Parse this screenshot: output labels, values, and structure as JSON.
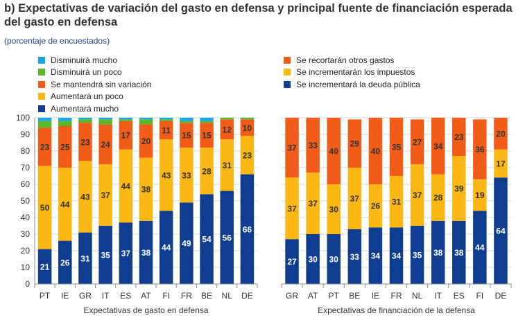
{
  "header": {
    "title": "b) Expectativas de variación del gasto en defensa y principal fuente de financiación esperada del gasto en defensa",
    "subtitle": "(porcentaje de encuestados)"
  },
  "legend_left": [
    {
      "label": "Disminuirá mucho",
      "color": "#1aa7e0"
    },
    {
      "label": "Disminuirá un poco",
      "color": "#5cb82a"
    },
    {
      "label": "Se mantendrá sin variación",
      "color": "#f25c19"
    },
    {
      "label": "Aumentará un poco",
      "color": "#fbb814"
    },
    {
      "label": "Aumentará mucho",
      "color": "#0f3d8f"
    }
  ],
  "legend_right": [
    {
      "label": "Se recortarán otros gastos",
      "color": "#f25c19"
    },
    {
      "label": "Se incrementarán los impuestos",
      "color": "#fbb814"
    },
    {
      "label": "Se incrementará la deuda pública",
      "color": "#0f3d8f"
    }
  ],
  "chart_data": [
    {
      "type": "bar",
      "stacked": true,
      "xlabel": "Expectativas de gasto en defensa",
      "ylabel": "",
      "ylim": [
        0,
        100
      ],
      "yticks": [
        0,
        10,
        20,
        30,
        40,
        50,
        60,
        70,
        80,
        90,
        100
      ],
      "grid": true,
      "categories": [
        "PT",
        "IE",
        "GR",
        "IT",
        "ES",
        "AT",
        "FI",
        "FR",
        "BE",
        "NL",
        "DE"
      ],
      "series": [
        {
          "name": "Aumentará mucho",
          "color": "#0f3d8f",
          "label_color": "#ffffff",
          "values": [
            21,
            26,
            31,
            35,
            37,
            38,
            44,
            49,
            54,
            56,
            66
          ]
        },
        {
          "name": "Aumentará un poco",
          "color": "#fbb814",
          "label_color": "#333333",
          "values": [
            50,
            44,
            43,
            37,
            44,
            38,
            43,
            33,
            28,
            31,
            23
          ]
        },
        {
          "name": "Se mantendrá sin variación",
          "color": "#f25c19",
          "label_color": "#333333",
          "values": [
            23,
            25,
            23,
            24,
            17,
            20,
            11,
            15,
            15,
            12,
            10
          ]
        },
        {
          "name": "Disminuirá un poco",
          "color": "#5cb82a",
          "label_color": "#333333",
          "values": [
            4,
            3,
            2,
            3,
            1,
            3,
            1,
            1,
            1,
            1,
            1
          ]
        },
        {
          "name": "Disminuirá mucho",
          "color": "#1aa7e0",
          "label_color": "#333333",
          "values": [
            2,
            2,
            1,
            1,
            1,
            1,
            1,
            2,
            2,
            0,
            0
          ]
        }
      ]
    },
    {
      "type": "bar",
      "stacked": true,
      "xlabel": "Expectativas de financiación de la defensa",
      "ylabel": "",
      "ylim": [
        0,
        100
      ],
      "grid": true,
      "categories": [
        "GR",
        "AT",
        "PT",
        "BE",
        "IE",
        "FR",
        "NL",
        "IT",
        "ES",
        "FI",
        "DE"
      ],
      "series": [
        {
          "name": "Se incrementará la deuda pública",
          "color": "#0f3d8f",
          "label_color": "#ffffff",
          "values": [
            27,
            30,
            30,
            33,
            34,
            34,
            35,
            38,
            38,
            44,
            64
          ]
        },
        {
          "name": "Se incrementarán los impuestos",
          "color": "#fbb814",
          "label_color": "#333333",
          "values": [
            37,
            37,
            30,
            37,
            26,
            31,
            37,
            28,
            39,
            19,
            17
          ]
        },
        {
          "name": "Se recortarán otros gastos",
          "color": "#f25c19",
          "label_color": "#333333",
          "values": [
            37,
            33,
            40,
            29,
            40,
            35,
            27,
            34,
            23,
            36,
            20
          ]
        }
      ]
    }
  ]
}
